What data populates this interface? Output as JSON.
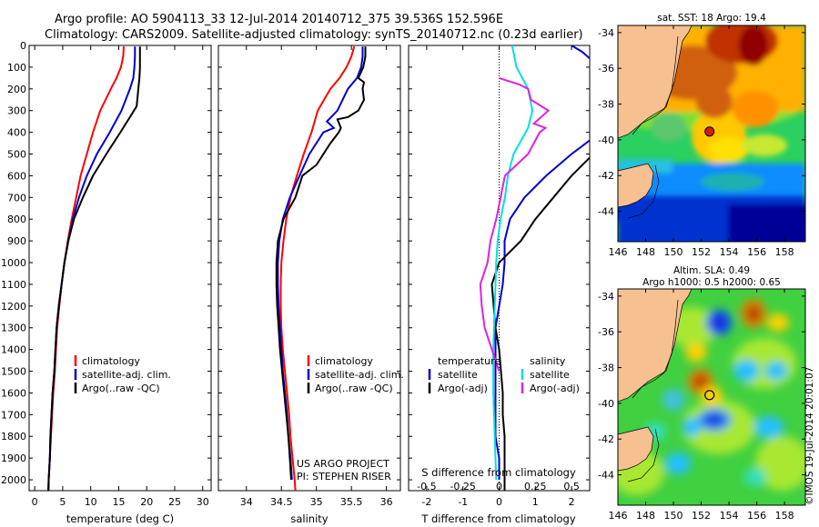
{
  "title_line1": "Argo profile: AO 5904113_33 12-Jul-2014 20140712_375 39.536S 152.596E",
  "title_line2": "Climatology: CARS2009. Satellite-adjusted climatology: synTS_20140712.nc (0.23d earlier)",
  "colors": {
    "climatology": "#ff0000",
    "satellite": "#0000cc",
    "argo": "#000000",
    "argo_adj_s": "#e020e0",
    "satellite_s": "#00e0e0",
    "land": "#f6c090",
    "map_marker": "#d02000"
  },
  "chart_data": [
    {
      "type": "line",
      "id": "temperature",
      "xlabel": "temperature (deg C)",
      "ylabel": "",
      "xlim": [
        -1,
        31.5
      ],
      "ylim": [
        2050,
        0
      ],
      "xticks": [
        "0",
        "5",
        "10",
        "15",
        "20",
        "25",
        "30"
      ],
      "xtick_values": [
        0,
        5,
        10,
        15,
        20,
        25,
        30
      ],
      "yticks": [
        "0",
        "100",
        "200",
        "300",
        "400",
        "500",
        "600",
        "700",
        "800",
        "900",
        "1000",
        "1100",
        "1200",
        "1300",
        "1400",
        "1500",
        "1600",
        "1700",
        "1800",
        "1900",
        "2000"
      ],
      "ytick_values": [
        0,
        100,
        200,
        300,
        400,
        500,
        600,
        700,
        800,
        900,
        1000,
        1100,
        1200,
        1300,
        1400,
        1500,
        1600,
        1700,
        1800,
        1900,
        2000
      ],
      "legend": [
        "climatology",
        "satellite-adj. clim.",
        "Argo(..raw -QC)"
      ],
      "series": [
        {
          "name": "climatology",
          "color": "#ff0000",
          "depth": [
            5,
            50,
            100,
            150,
            200,
            300,
            400,
            500,
            600,
            700,
            800,
            900,
            1000,
            1100,
            1200,
            1300,
            1400,
            1500,
            1600,
            1700,
            1800,
            1900,
            2000,
            2050
          ],
          "values": [
            15.9,
            15.8,
            15.4,
            14.6,
            13.6,
            11.7,
            10.4,
            9.3,
            8.2,
            7.4,
            6.6,
            5.9,
            5.3,
            4.8,
            4.4,
            4.0,
            3.8,
            3.6,
            3.3,
            3.1,
            2.9,
            2.7,
            2.5,
            2.45
          ]
        },
        {
          "name": "satellite-adj. clim.",
          "color": "#0000cc",
          "depth": [
            5,
            50,
            100,
            150,
            200,
            300,
            400,
            500,
            600,
            700,
            800,
            900,
            1000,
            1100,
            1200,
            1300,
            1400,
            1500,
            1600,
            1700,
            1800,
            1900,
            2000,
            2050
          ],
          "values": [
            17.9,
            17.9,
            17.8,
            17.6,
            17.0,
            15.5,
            13.4,
            11.1,
            9.3,
            7.9,
            6.8,
            6.0,
            5.3,
            4.8,
            4.3,
            3.9,
            3.7,
            3.5,
            3.2,
            3.0,
            2.8,
            2.7,
            2.5,
            2.45
          ]
        },
        {
          "name": "Argo(..raw -QC)",
          "color": "#000000",
          "depth": [
            5,
            50,
            100,
            150,
            200,
            280,
            330,
            400,
            500,
            600,
            700,
            800,
            900,
            1000,
            1100,
            1200,
            1300,
            1400,
            1500,
            1600,
            1700,
            1800,
            1900,
            2000,
            2050
          ],
          "values": [
            18.8,
            18.8,
            18.8,
            18.7,
            18.5,
            18.2,
            17.0,
            15.3,
            12.8,
            10.4,
            8.6,
            7.0,
            6.0,
            5.3,
            4.8,
            4.3,
            3.9,
            3.7,
            3.5,
            3.2,
            3.0,
            2.8,
            2.7,
            2.5,
            2.45
          ]
        }
      ]
    },
    {
      "type": "line",
      "id": "salinity",
      "xlabel": "salinity",
      "xlim": [
        33.6,
        36.2
      ],
      "ylim": [
        2050,
        0
      ],
      "xticks": [
        "34",
        "34.5",
        "35",
        "35.5",
        "36"
      ],
      "xtick_values": [
        34,
        34.5,
        35,
        35.5,
        36
      ],
      "legend": [
        "climatology",
        "satellite-adj. clim.",
        "Argo(..raw -QC)"
      ],
      "annotation": [
        "US ARGO PROJECT",
        "PI: STEPHEN RISER"
      ],
      "series": [
        {
          "name": "climatology",
          "color": "#ff0000",
          "depth": [
            5,
            50,
            100,
            150,
            200,
            300,
            400,
            500,
            600,
            700,
            800,
            900,
            1000,
            1100,
            1200,
            1300,
            1400,
            1500,
            1600,
            1700,
            1800,
            1900,
            2000,
            2050
          ],
          "values": [
            35.54,
            35.5,
            35.43,
            35.33,
            35.2,
            35.02,
            34.93,
            34.82,
            34.72,
            34.63,
            34.57,
            34.53,
            34.5,
            34.49,
            34.49,
            34.5,
            34.52,
            34.55,
            34.58,
            34.61,
            34.63,
            34.66,
            34.69,
            34.7
          ]
        },
        {
          "name": "satellite-adj. clim.",
          "color": "#0000cc",
          "depth": [
            5,
            50,
            100,
            150,
            200,
            300,
            350,
            380,
            400,
            500,
            600,
            700,
            800,
            900,
            1000,
            1100,
            1200,
            1300,
            1400,
            1500,
            1600,
            1700,
            1800,
            1900,
            2000
          ],
          "values": [
            35.66,
            35.66,
            35.64,
            35.58,
            35.45,
            35.3,
            35.15,
            35.25,
            35.1,
            34.9,
            34.76,
            34.62,
            34.52,
            34.47,
            34.45,
            34.45,
            34.46,
            34.48,
            34.5,
            34.52,
            34.55,
            34.58,
            34.6,
            34.63,
            34.65
          ]
        },
        {
          "name": "Argo(..raw -QC)",
          "color": "#000000",
          "depth": [
            5,
            50,
            100,
            150,
            170,
            200,
            250,
            300,
            330,
            340,
            380,
            400,
            450,
            550,
            600,
            700,
            800,
            900,
            1000,
            1100,
            1200,
            1300,
            1400,
            1500,
            1600,
            1700,
            1800,
            1900,
            2000
          ],
          "values": [
            35.7,
            35.7,
            35.67,
            35.6,
            35.68,
            35.66,
            35.68,
            35.6,
            35.45,
            35.3,
            35.35,
            35.32,
            35.2,
            35.0,
            34.8,
            34.7,
            34.53,
            34.45,
            34.43,
            34.43,
            34.44,
            34.46,
            34.48,
            34.51,
            34.54,
            34.57,
            34.6,
            34.62,
            34.64
          ]
        }
      ]
    },
    {
      "type": "line",
      "id": "difference",
      "xlabel": "T difference from climatology",
      "xlabel_top": "S difference from climatology",
      "xlim": [
        -2.5,
        2.5
      ],
      "ylim": [
        2050,
        0
      ],
      "xticks": [
        "-2",
        "-1",
        "0",
        "1",
        "2"
      ],
      "xtick_values": [
        -2,
        -1,
        0,
        1,
        2
      ],
      "xticks_s": [
        "-0.5",
        "-0.25",
        "0",
        "0.25",
        "0.5"
      ],
      "xtick_s_values": [
        -0.5,
        -0.25,
        0,
        0.25,
        0.5
      ],
      "legend_temperature_header": "temperature",
      "legend_salinity_header": "salinity",
      "legend": [
        "satellite",
        "Argo(-adj)",
        "satellite",
        "Argo(-adj)"
      ],
      "series": [
        {
          "name": "T satellite",
          "color": "#0000cc",
          "depth": [
            0,
            30,
            60,
            100,
            200,
            300,
            400,
            500,
            600,
            700,
            800,
            900,
            1000,
            1100,
            1200,
            1300,
            1400,
            1500,
            1600,
            1700,
            1800,
            1900,
            2000
          ],
          "values": [
            2.0,
            2.3,
            2.5,
            2.6,
            3.0,
            3.4,
            2.8,
            2.0,
            1.3,
            0.7,
            0.3,
            0.15,
            0.15,
            0.1,
            0.0,
            -0.1,
            -0.1,
            -0.1,
            -0.1,
            -0.1,
            -0.1,
            0.0,
            0.0
          ]
        },
        {
          "name": "T Argo(-adj)",
          "color": "#000000",
          "depth": [
            100,
            200,
            300,
            400,
            500,
            600,
            700,
            800,
            900,
            1000,
            1100,
            1200,
            1300,
            1400,
            1500,
            1600,
            1700,
            1800,
            1900,
            2000,
            2050
          ],
          "values": [
            3.4,
            3.7,
            3.2,
            2.6,
            2.6,
            2.0,
            1.5,
            1.0,
            0.6,
            0.0,
            -0.2,
            -0.15,
            -0.1,
            0.0,
            0.05,
            0.1,
            0.1,
            0.15,
            0.15,
            0.15,
            0.15
          ]
        },
        {
          "name": "S satellite",
          "color": "#00e0e0",
          "depth": [
            0,
            100,
            200,
            300,
            380,
            500,
            600,
            700,
            800,
            900,
            1000,
            1200,
            1400,
            1600,
            1800,
            2000
          ],
          "values": [
            0.09,
            0.12,
            0.2,
            0.23,
            0.2,
            0.1,
            0.06,
            0.04,
            0.01,
            -0.01,
            -0.02,
            -0.03,
            -0.04,
            -0.04,
            -0.03,
            -0.02
          ]
        },
        {
          "name": "S Argo(-adj)",
          "color": "#e020e0",
          "depth": [
            150,
            180,
            200,
            250,
            300,
            360,
            380,
            400,
            500,
            600,
            700,
            800,
            900,
            1000,
            1100,
            1200,
            1300,
            1400,
            1500
          ],
          "values": [
            0.0,
            0.14,
            0.2,
            0.22,
            0.34,
            0.24,
            0.32,
            0.28,
            0.2,
            0.04,
            0.01,
            -0.02,
            -0.06,
            -0.08,
            -0.13,
            -0.12,
            -0.1,
            -0.05,
            0.0
          ]
        }
      ]
    },
    {
      "type": "heatmap",
      "id": "sst_map",
      "title": "sat. SST: 18 Argo: 19.4",
      "xticks": [
        "146",
        "148",
        "150",
        "152",
        "154",
        "156",
        "158"
      ],
      "xtick_values": [
        146,
        148,
        150,
        152,
        154,
        156,
        158
      ],
      "yticks": [
        "-34",
        "-36",
        "-38",
        "-40",
        "-42",
        "-44"
      ],
      "ytick_values": [
        -34,
        -36,
        -38,
        -40,
        -42,
        -44
      ],
      "xlim": [
        146,
        159.5
      ],
      "ylim": [
        -45.7,
        -33.6
      ],
      "marker": [
        152.6,
        -39.54
      ]
    },
    {
      "type": "heatmap",
      "id": "sla_map",
      "title_line1": "Altim. SLA: 0.49",
      "title_line2": "Argo h1000: 0.5 h2000: 0.65",
      "xticks": [
        "146",
        "148",
        "150",
        "152",
        "154",
        "156",
        "158"
      ],
      "xtick_values": [
        146,
        148,
        150,
        152,
        154,
        156,
        158
      ],
      "yticks": [
        "-34",
        "-36",
        "-38",
        "-40",
        "-42",
        "-44"
      ],
      "ytick_values": [
        -34,
        -36,
        -38,
        -40,
        -42,
        -44
      ],
      "xlim": [
        146,
        159.5
      ],
      "ylim": [
        -45.7,
        -33.6
      ],
      "marker": [
        152.6,
        -39.54
      ]
    }
  ],
  "watermark": "©IMOS 19-Jul-2014 20:01:07"
}
